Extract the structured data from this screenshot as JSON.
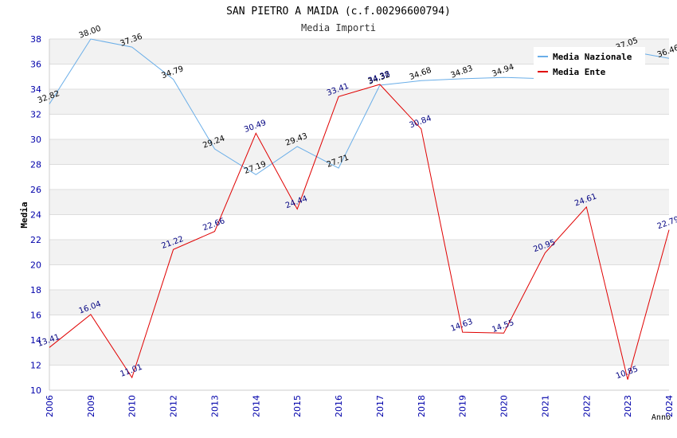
{
  "chart_data": {
    "type": "line",
    "title": "SAN PIETRO A MAIDA (c.f.00296600794)",
    "subtitle": "Media Importi",
    "ylabel": "Media",
    "xlabel": "Anno",
    "ylim": [
      10,
      38
    ],
    "yticks": [
      10,
      12,
      14,
      16,
      18,
      20,
      22,
      24,
      26,
      28,
      30,
      32,
      34,
      36,
      38
    ],
    "categories": [
      "2006",
      "2009",
      "2010",
      "2012",
      "2013",
      "2014",
      "2015",
      "2016",
      "2017",
      "2018",
      "2019",
      "2020",
      "2021",
      "2022",
      "2023",
      "2024"
    ],
    "legend_position": "top-right",
    "grid": true,
    "series": [
      {
        "name": "Media Nazionale",
        "color": "#6aaee8",
        "values": [
          32.82,
          38.0,
          37.36,
          34.79,
          29.24,
          27.19,
          29.43,
          27.71,
          34.32,
          34.68,
          34.83,
          34.94,
          34.83,
          null,
          37.05,
          36.46
        ],
        "labels": [
          "32.82",
          "38.00",
          "37.36",
          "34.79",
          "29.24",
          "27.19",
          "29.43",
          "27.71",
          "34.32",
          "34.68",
          "34.83",
          "34.94",
          "",
          "",
          "37.05",
          "36.46"
        ]
      },
      {
        "name": "Media Ente",
        "color": "#e00000",
        "values": [
          13.41,
          16.04,
          11.01,
          21.22,
          22.66,
          30.49,
          24.44,
          33.41,
          34.38,
          30.84,
          14.63,
          14.55,
          20.95,
          24.61,
          10.85,
          22.79
        ],
        "labels": [
          "13.41",
          "16.04",
          "11.01",
          "21.22",
          "22.66",
          "30.49",
          "24.44",
          "33.41",
          "34.38",
          "30.84",
          "14.63",
          "14.55",
          "20.95",
          "24.61",
          "10.85",
          "22.79"
        ]
      }
    ]
  }
}
